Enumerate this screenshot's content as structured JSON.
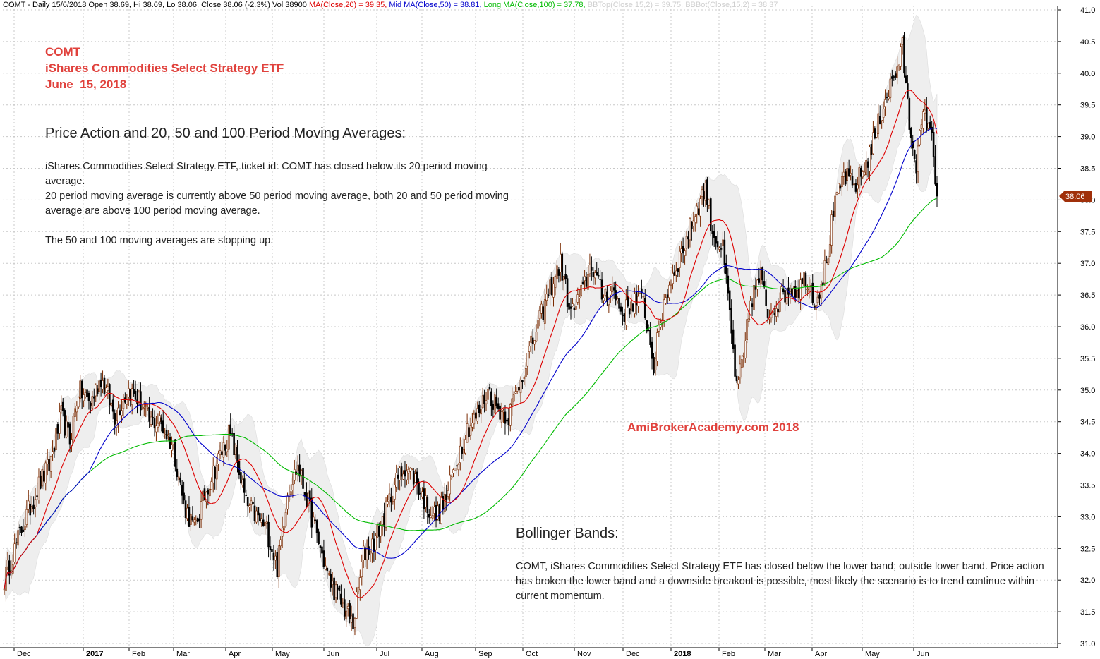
{
  "header": {
    "info": "COMT - Daily 15/6/2018 Open 38.69, Hi 38.69, Lo 38.06, Close 38.06 (-2.3%) Vol 38900",
    "ma20_label": "MA(Close,20) = 39.35,",
    "ma50_label": "Mid MA(Close,50) = 38.81,",
    "ma100_label": "Long MA(Close,100) = 37.78,",
    "bbtop_label": "BBTop(Close,15,2) = 39.75,",
    "bbbot_label": "BBBot(Close,15,2) = 38.37",
    "colors": {
      "info": "#000000",
      "ma20": "#dd0000",
      "ma50": "#0000cc",
      "ma100": "#00bb00",
      "bb": "#cccccc"
    }
  },
  "title_block": {
    "line1": "COMT",
    "line2": "iShares Commodities Select Strategy ETF",
    "line3": "June  15, 2018"
  },
  "ma_section": {
    "heading": "Price Action and 20, 50 and 100 Period Moving Averages:",
    "para1": "iShares Commodities Select Strategy ETF, ticket id: COMT has closed below its 20 period moving average.",
    "para2": "20 period moving average is currently above 50 period moving average, both 20 and 50 period moving average are above 100 period moving average.",
    "para3": "The 50 and 100 moving averages are slopping up."
  },
  "bb_section": {
    "heading": "Bollinger Bands:",
    "para": "COMT, iShares Commodities Select Strategy ETF has closed below the lower band; outside lower band. Price action has broken the lower band and a downside breakout is possible,  most likely the scenario is to trend continue within current momentum."
  },
  "brand": "AmiBrokerAcademy.com  2018",
  "chart_data": {
    "type": "candlestick",
    "symbol": "COMT",
    "ylim": [
      31.0,
      41.0
    ],
    "y_ticks": [
      "41.0",
      "40.5",
      "40.0",
      "39.5",
      "39.0",
      "38.5",
      "38.0",
      "37.5",
      "37.0",
      "36.5",
      "36.0",
      "35.5",
      "35.0",
      "34.5",
      "34.0",
      "33.5",
      "33.0",
      "32.5",
      "32.0",
      "31.5",
      "31.0"
    ],
    "x_ticks": [
      {
        "label": "Dec",
        "bold": false
      },
      {
        "label": "2017",
        "bold": true
      },
      {
        "label": "Feb",
        "bold": false
      },
      {
        "label": "Mar",
        "bold": false
      },
      {
        "label": "Apr",
        "bold": false
      },
      {
        "label": "May",
        "bold": false
      },
      {
        "label": "Jun",
        "bold": false
      },
      {
        "label": "Jul",
        "bold": false
      },
      {
        "label": "Aug",
        "bold": false
      },
      {
        "label": "Sep",
        "bold": false
      },
      {
        "label": "Oct",
        "bold": false
      },
      {
        "label": "Nov",
        "bold": false
      },
      {
        "label": "Dec",
        "bold": false
      },
      {
        "label": "2018",
        "bold": true
      },
      {
        "label": "Feb",
        "bold": false
      },
      {
        "label": "Mar",
        "bold": false
      },
      {
        "label": "Apr",
        "bold": false
      },
      {
        "label": "May",
        "bold": false
      },
      {
        "label": "Jun",
        "bold": false
      }
    ],
    "last_close_label": "38.06",
    "last_close": 38.06,
    "close_path": [
      [
        0,
        32.0
      ],
      [
        10,
        32.8
      ],
      [
        20,
        33.5
      ],
      [
        26,
        33.8
      ],
      [
        33,
        34.6
      ],
      [
        38,
        34.2
      ],
      [
        43,
        35.0
      ],
      [
        50,
        34.8
      ],
      [
        56,
        35.2
      ],
      [
        64,
        34.6
      ],
      [
        72,
        35.0
      ],
      [
        79,
        34.8
      ],
      [
        84,
        34.5
      ],
      [
        90,
        34.5
      ],
      [
        98,
        34.1
      ],
      [
        104,
        33.2
      ],
      [
        110,
        32.8
      ],
      [
        118,
        33.5
      ],
      [
        124,
        33.9
      ],
      [
        130,
        34.3
      ],
      [
        134,
        34.0
      ],
      [
        140,
        33.2
      ],
      [
        146,
        33.0
      ],
      [
        152,
        32.8
      ],
      [
        158,
        32.2
      ],
      [
        164,
        33.4
      ],
      [
        170,
        33.8
      ],
      [
        176,
        33.2
      ],
      [
        182,
        32.6
      ],
      [
        188,
        32.0
      ],
      [
        196,
        31.6
      ],
      [
        202,
        31.3
      ],
      [
        208,
        32.4
      ],
      [
        214,
        32.6
      ],
      [
        220,
        33.0
      ],
      [
        226,
        33.5
      ],
      [
        232,
        33.8
      ],
      [
        238,
        33.6
      ],
      [
        244,
        33.2
      ],
      [
        250,
        33.0
      ],
      [
        256,
        33.3
      ],
      [
        262,
        33.9
      ],
      [
        268,
        34.4
      ],
      [
        274,
        34.6
      ],
      [
        280,
        35.0
      ],
      [
        286,
        34.7
      ],
      [
        292,
        34.6
      ],
      [
        298,
        35.1
      ],
      [
        304,
        35.6
      ],
      [
        310,
        36.1
      ],
      [
        316,
        36.6
      ],
      [
        322,
        37.0
      ],
      [
        328,
        36.2
      ],
      [
        334,
        36.5
      ],
      [
        340,
        37.0
      ],
      [
        346,
        36.5
      ],
      [
        352,
        36.6
      ],
      [
        358,
        36.2
      ],
      [
        364,
        36.4
      ],
      [
        370,
        36.4
      ],
      [
        376,
        35.4
      ],
      [
        382,
        36.4
      ],
      [
        388,
        36.9
      ],
      [
        394,
        37.3
      ],
      [
        400,
        37.8
      ],
      [
        406,
        38.2
      ],
      [
        410,
        37.5
      ],
      [
        416,
        37.2
      ],
      [
        420,
        36.2
      ],
      [
        424,
        35.0
      ],
      [
        428,
        35.5
      ],
      [
        432,
        36.4
      ],
      [
        438,
        36.8
      ],
      [
        442,
        36.2
      ],
      [
        448,
        36.4
      ],
      [
        454,
        36.6
      ],
      [
        460,
        36.6
      ],
      [
        464,
        36.8
      ],
      [
        470,
        36.4
      ],
      [
        476,
        37.0
      ],
      [
        480,
        37.8
      ],
      [
        486,
        38.4
      ],
      [
        492,
        38.2
      ],
      [
        498,
        38.5
      ],
      [
        504,
        39.0
      ],
      [
        510,
        39.6
      ],
      [
        516,
        40.0
      ],
      [
        520,
        40.4
      ],
      [
        524,
        39.2
      ],
      [
        528,
        38.6
      ],
      [
        532,
        39.3
      ],
      [
        536,
        39.2
      ],
      [
        540,
        38.06
      ]
    ],
    "bar_count": 541
  }
}
